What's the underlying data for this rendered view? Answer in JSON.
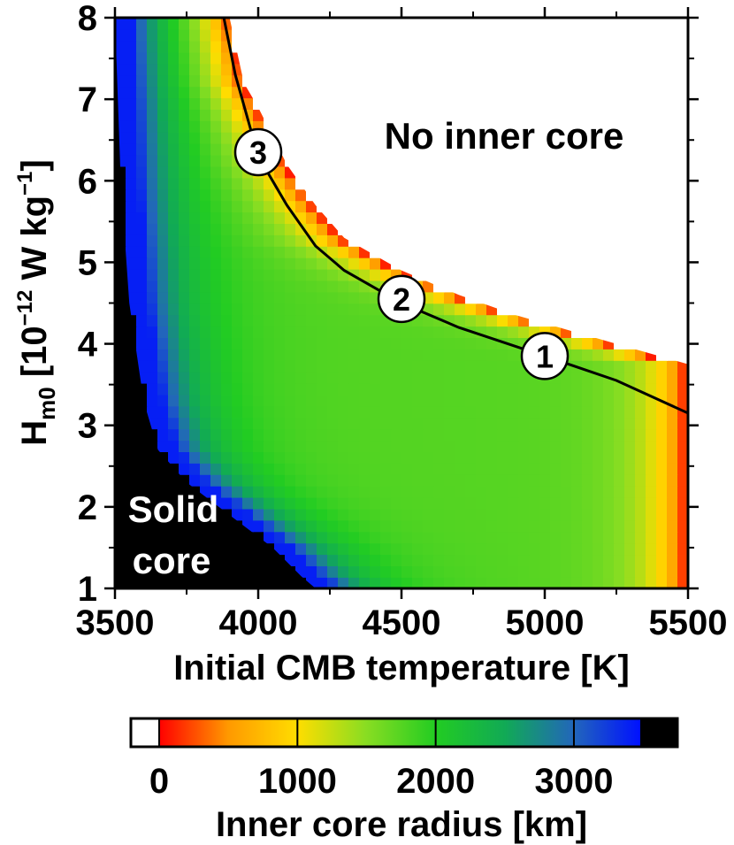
{
  "chart_data": {
    "type": "heatmap",
    "title": "",
    "xlabel": "Initial CMB temperature [K]",
    "ylabel": {
      "base": "H",
      "sub": "m0",
      "bracket_open": " [10",
      "exp1": "−12",
      "mid": " W kg",
      "exp2": "−1",
      "bracket_close": "]"
    },
    "xlim": [
      3500,
      5500
    ],
    "ylim": [
      1,
      8
    ],
    "x_ticks": [
      3500,
      4000,
      4500,
      5000,
      5500
    ],
    "x_tick_labels": [
      "3500",
      "4000",
      "4500",
      "5000",
      "5500"
    ],
    "y_ticks": [
      1,
      2,
      3,
      4,
      5,
      6,
      7,
      8
    ],
    "y_tick_labels": [
      "1",
      "2",
      "3",
      "4",
      "5",
      "6",
      "7",
      "8"
    ],
    "regions": {
      "no_inner_core": "No inner core",
      "solid_core_line1": "Solid",
      "solid_core_line2": "core"
    },
    "no_inner_core_boundary": [
      {
        "x": 3900,
        "y": 8.0
      },
      {
        "x": 3950,
        "y": 7.2
      },
      {
        "x": 4000,
        "y": 6.9
      },
      {
        "x": 4100,
        "y": 6.2
      },
      {
        "x": 4200,
        "y": 5.7
      },
      {
        "x": 4300,
        "y": 5.3
      },
      {
        "x": 4500,
        "y": 4.9
      },
      {
        "x": 4700,
        "y": 4.6
      },
      {
        "x": 4900,
        "y": 4.35
      },
      {
        "x": 5100,
        "y": 4.15
      },
      {
        "x": 5300,
        "y": 3.95
      },
      {
        "x": 5500,
        "y": 3.75
      }
    ],
    "solid_core_boundary": [
      {
        "x": 3500,
        "y": 8.0
      },
      {
        "x": 3520,
        "y": 6.0
      },
      {
        "x": 3550,
        "y": 4.5
      },
      {
        "x": 3600,
        "y": 3.3
      },
      {
        "x": 3650,
        "y": 2.7
      },
      {
        "x": 3750,
        "y": 2.3
      },
      {
        "x": 3900,
        "y": 1.9
      },
      {
        "x": 4050,
        "y": 1.5
      },
      {
        "x": 4150,
        "y": 1.15
      },
      {
        "x": 4200,
        "y": 1.0
      }
    ],
    "curve": [
      {
        "x": 3880,
        "y": 8.0
      },
      {
        "x": 3920,
        "y": 7.3
      },
      {
        "x": 4000,
        "y": 6.3
      },
      {
        "x": 4100,
        "y": 5.7
      },
      {
        "x": 4200,
        "y": 5.2
      },
      {
        "x": 4300,
        "y": 4.9
      },
      {
        "x": 4500,
        "y": 4.5
      },
      {
        "x": 4700,
        "y": 4.2
      },
      {
        "x": 5000,
        "y": 3.85
      },
      {
        "x": 5250,
        "y": 3.55
      },
      {
        "x": 5500,
        "y": 3.15
      }
    ],
    "markers": [
      {
        "label": "1",
        "x": 5000,
        "y": 3.85
      },
      {
        "label": "2",
        "x": 4500,
        "y": 4.55
      },
      {
        "label": "3",
        "x": 4000,
        "y": 6.35
      }
    ],
    "colorbar": {
      "label": "Inner core radius [km]",
      "range": [
        0,
        3480
      ],
      "ticks": [
        0,
        1000,
        2000,
        3000
      ],
      "tick_labels": [
        "0",
        "1000",
        "2000",
        "3000"
      ],
      "stops": [
        {
          "value": 0,
          "color": "#ff0000"
        },
        {
          "value": 500,
          "color": "#ff9900"
        },
        {
          "value": 1000,
          "color": "#ffdd00"
        },
        {
          "value": 1500,
          "color": "#88dd22"
        },
        {
          "value": 2000,
          "color": "#22cc22"
        },
        {
          "value": 2500,
          "color": "#11aa55"
        },
        {
          "value": 3000,
          "color": "#2266bb"
        },
        {
          "value": 3480,
          "color": "#0011ff"
        }
      ],
      "low_color": "#ffffff",
      "high_color": "#000000"
    }
  }
}
